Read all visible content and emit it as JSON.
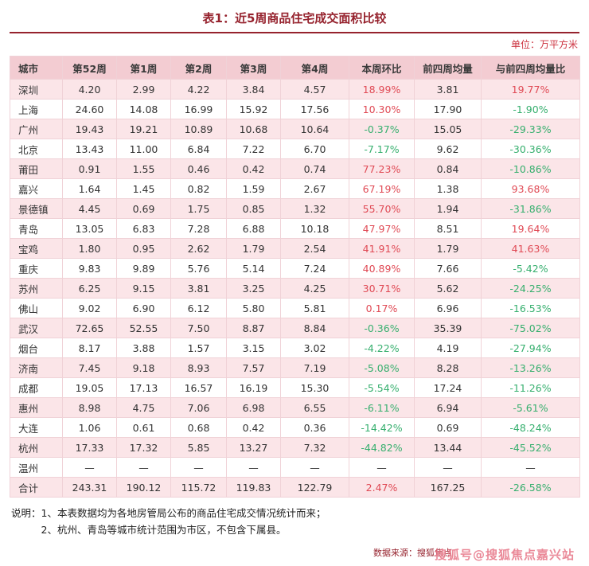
{
  "page": {
    "title": "表1：近5周商品住宅成交面积比较",
    "unit_label": "单位：万平方米"
  },
  "table": {
    "columns": [
      "城市",
      "第52周",
      "第1周",
      "第2周",
      "第3周",
      "第4周",
      "本周环比",
      "前四周均量",
      "与前四周均量比"
    ],
    "rows": [
      [
        "深圳",
        "4.20",
        "2.99",
        "4.22",
        "3.84",
        "4.57",
        "18.99%",
        "3.81",
        "19.77%"
      ],
      [
        "上海",
        "24.60",
        "14.08",
        "16.99",
        "15.92",
        "17.56",
        "10.30%",
        "17.90",
        "-1.90%"
      ],
      [
        "广州",
        "19.43",
        "19.21",
        "10.89",
        "10.68",
        "10.64",
        "-0.37%",
        "15.05",
        "-29.33%"
      ],
      [
        "北京",
        "13.43",
        "11.00",
        "6.84",
        "7.22",
        "6.70",
        "-7.17%",
        "9.62",
        "-30.36%"
      ],
      [
        "莆田",
        "0.91",
        "1.55",
        "0.46",
        "0.42",
        "0.74",
        "77.23%",
        "0.84",
        "-10.86%"
      ],
      [
        "嘉兴",
        "1.64",
        "1.45",
        "0.82",
        "1.59",
        "2.67",
        "67.19%",
        "1.38",
        "93.68%"
      ],
      [
        "景德镇",
        "4.45",
        "0.69",
        "1.75",
        "0.85",
        "1.32",
        "55.70%",
        "1.94",
        "-31.86%"
      ],
      [
        "青岛",
        "13.05",
        "6.83",
        "7.28",
        "6.88",
        "10.18",
        "47.97%",
        "8.51",
        "19.64%"
      ],
      [
        "宝鸡",
        "1.80",
        "0.95",
        "2.62",
        "1.79",
        "2.54",
        "41.91%",
        "1.79",
        "41.63%"
      ],
      [
        "重庆",
        "9.83",
        "9.89",
        "5.76",
        "5.14",
        "7.24",
        "40.89%",
        "7.66",
        "-5.42%"
      ],
      [
        "苏州",
        "6.25",
        "9.15",
        "3.81",
        "3.25",
        "4.25",
        "30.71%",
        "5.62",
        "-24.25%"
      ],
      [
        "佛山",
        "9.02",
        "6.90",
        "6.12",
        "5.80",
        "5.81",
        "0.17%",
        "6.96",
        "-16.53%"
      ],
      [
        "武汉",
        "72.65",
        "52.55",
        "7.50",
        "8.87",
        "8.84",
        "-0.36%",
        "35.39",
        "-75.02%"
      ],
      [
        "烟台",
        "8.17",
        "3.88",
        "1.57",
        "3.15",
        "3.02",
        "-4.22%",
        "4.19",
        "-27.94%"
      ],
      [
        "济南",
        "7.45",
        "9.18",
        "8.93",
        "7.57",
        "7.19",
        "-5.08%",
        "8.28",
        "-13.26%"
      ],
      [
        "成都",
        "19.05",
        "17.13",
        "16.57",
        "16.19",
        "15.30",
        "-5.54%",
        "17.24",
        "-11.26%"
      ],
      [
        "惠州",
        "8.98",
        "4.75",
        "7.06",
        "6.98",
        "6.55",
        "-6.11%",
        "6.94",
        "-5.61%"
      ],
      [
        "大连",
        "1.06",
        "0.61",
        "0.68",
        "0.42",
        "0.36",
        "-14.42%",
        "0.69",
        "-48.24%"
      ],
      [
        "杭州",
        "17.33",
        "17.32",
        "5.85",
        "13.27",
        "7.32",
        "-44.82%",
        "13.44",
        "-45.52%"
      ],
      [
        "温州",
        "—",
        "—",
        "—",
        "—",
        "—",
        "—",
        "—",
        "—"
      ],
      [
        "合计",
        "243.31",
        "190.12",
        "115.72",
        "119.83",
        "122.79",
        "2.47%",
        "167.25",
        "-26.58%"
      ]
    ]
  },
  "notes": {
    "label": "说明：",
    "line1": "1、本表数据均为各地房管局公布的商品住宅成交情况统计而来；",
    "line2": "2、杭州、青岛等城市统计范围为市区，不包含下属县。"
  },
  "footer": {
    "source_label": "数据来源：搜狐焦点",
    "watermark": "搜狐号@搜狐焦点嘉兴站"
  },
  "colors": {
    "title": "#96232e",
    "unit": "#cc3340",
    "header_bg": "#f3ccd2",
    "row_alt_bg": "#fbe5e8",
    "positive": "#e04a55",
    "negative": "#36af6e",
    "border": "#f0d2d7",
    "watermark": "#e8798a"
  }
}
